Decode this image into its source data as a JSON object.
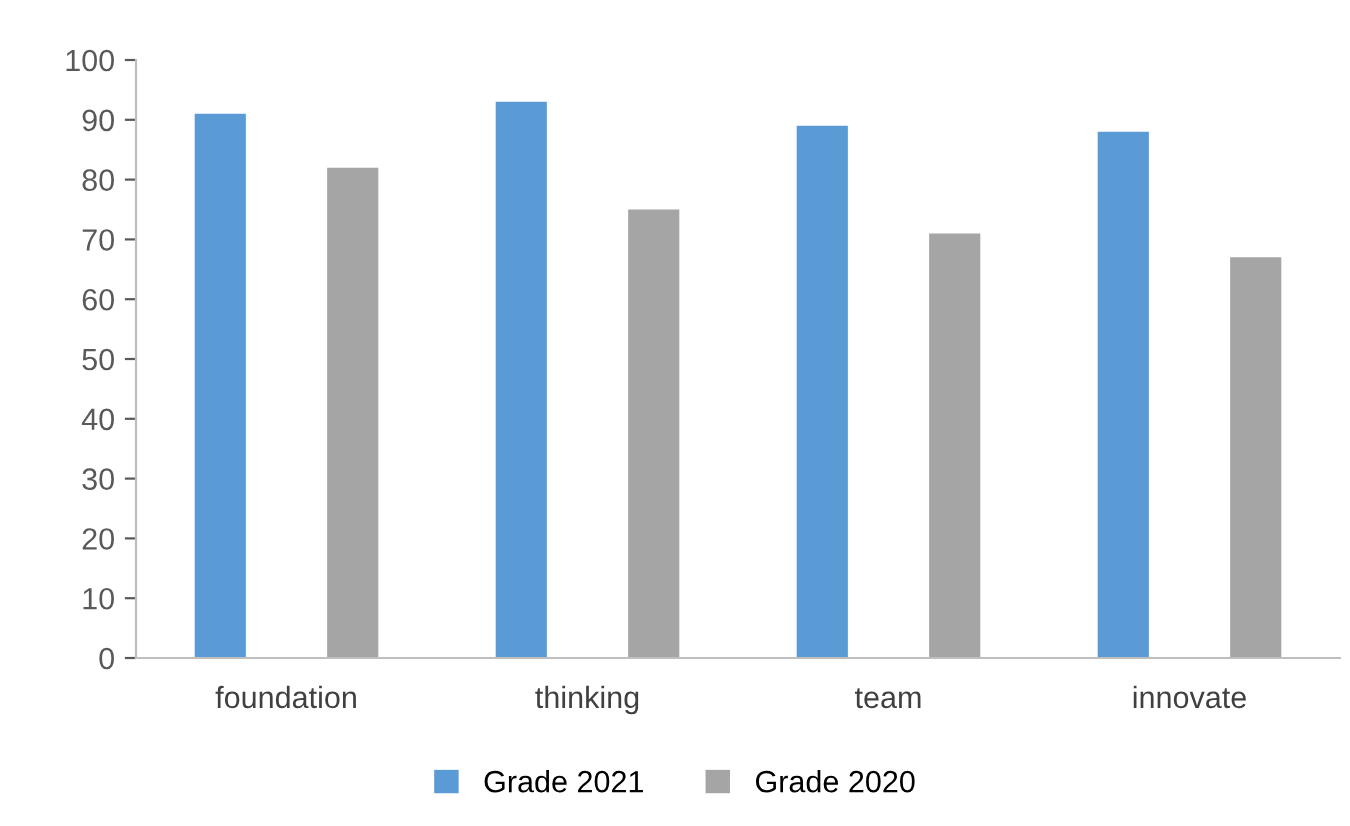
{
  "chart_data": {
    "type": "bar",
    "categories": [
      "foundation",
      "thinking",
      "team",
      "innovate"
    ],
    "series": [
      {
        "name": "Grade 2021",
        "color": "#5b9bd5",
        "values": [
          91,
          93,
          89,
          88
        ]
      },
      {
        "name": "Grade 2020",
        "color": "#a5a5a5",
        "values": [
          82,
          75,
          71,
          67
        ]
      }
    ],
    "ylim": [
      0,
      100
    ],
    "yticks": [
      0,
      10,
      20,
      30,
      40,
      50,
      60,
      70,
      80,
      90,
      100
    ],
    "grid": false,
    "legend": "bottom"
  }
}
